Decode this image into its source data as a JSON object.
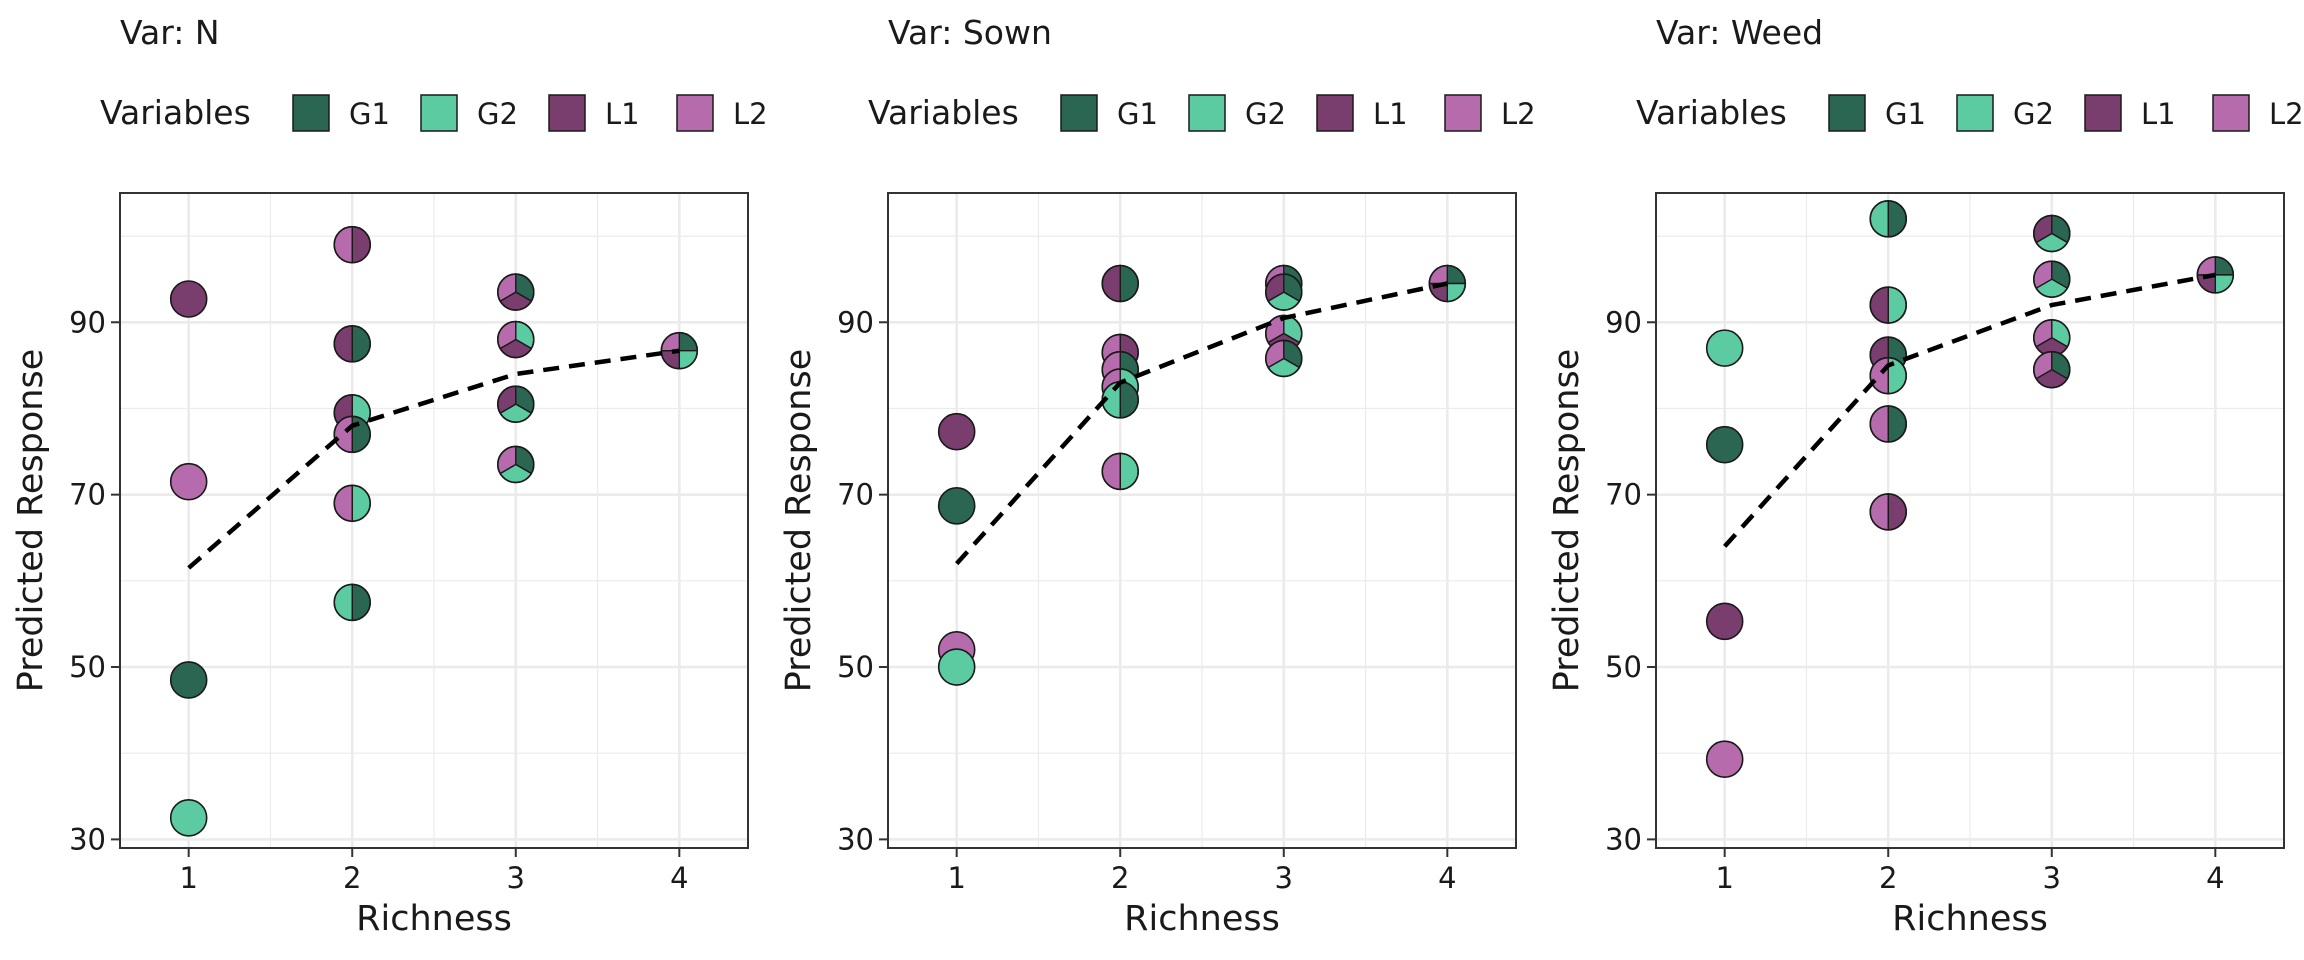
{
  "colors": {
    "G1": "#2A6651",
    "G2": "#5DCBA1",
    "L1": "#793D6E",
    "L2": "#B66BAD",
    "grid": "#EBEBEB",
    "panel_border": "#333333"
  },
  "legend": {
    "title": "Variables",
    "keys": [
      "G1",
      "G2",
      "L1",
      "L2"
    ]
  },
  "chart_data": [
    {
      "type": "scatter",
      "title": "Var: N",
      "xlabel": "Richness",
      "ylabel": "Predicted Response",
      "x_ticks": [
        "1",
        "2",
        "3",
        "4"
      ],
      "y_ticks": [
        "30",
        "50",
        "70",
        "90"
      ],
      "xlim": [
        0.58,
        4.42
      ],
      "ylim": [
        29,
        105
      ],
      "grid": true,
      "legend_position": "top",
      "points": [
        {
          "x": 1,
          "y": 92.7,
          "groups": [
            "L1"
          ]
        },
        {
          "x": 1,
          "y": 71.5,
          "groups": [
            "L2"
          ]
        },
        {
          "x": 1,
          "y": 48.5,
          "groups": [
            "G1"
          ]
        },
        {
          "x": 1,
          "y": 32.5,
          "groups": [
            "G2"
          ]
        },
        {
          "x": 2,
          "y": 99.0,
          "groups": [
            "L1",
            "L2"
          ]
        },
        {
          "x": 2,
          "y": 87.5,
          "groups": [
            "G1",
            "L1"
          ]
        },
        {
          "x": 2,
          "y": 79.5,
          "groups": [
            "G2",
            "L1"
          ]
        },
        {
          "x": 2,
          "y": 77.0,
          "groups": [
            "G1",
            "L2"
          ]
        },
        {
          "x": 2,
          "y": 69.0,
          "groups": [
            "G2",
            "L2"
          ]
        },
        {
          "x": 2,
          "y": 57.5,
          "groups": [
            "G1",
            "G2"
          ]
        },
        {
          "x": 3,
          "y": 93.5,
          "groups": [
            "G1",
            "L1",
            "L2"
          ]
        },
        {
          "x": 3,
          "y": 88.0,
          "groups": [
            "G2",
            "L1",
            "L2"
          ]
        },
        {
          "x": 3,
          "y": 80.5,
          "groups": [
            "G1",
            "G2",
            "L1"
          ]
        },
        {
          "x": 3,
          "y": 73.5,
          "groups": [
            "G1",
            "G2",
            "L2"
          ]
        },
        {
          "x": 4,
          "y": 86.7,
          "groups": [
            "G1",
            "G2",
            "L1",
            "L2"
          ]
        }
      ],
      "trend": {
        "x": [
          1,
          2,
          3,
          4
        ],
        "y": [
          61.5,
          78.0,
          84.0,
          86.7
        ]
      }
    },
    {
      "type": "scatter",
      "title": "Var: Sown",
      "xlabel": "Richness",
      "ylabel": "Predicted Response",
      "x_ticks": [
        "1",
        "2",
        "3",
        "4"
      ],
      "y_ticks": [
        "30",
        "50",
        "70",
        "90"
      ],
      "xlim": [
        0.58,
        4.42
      ],
      "ylim": [
        29,
        105
      ],
      "grid": true,
      "legend_position": "top",
      "points": [
        {
          "x": 1,
          "y": 77.3,
          "groups": [
            "L1"
          ]
        },
        {
          "x": 1,
          "y": 68.7,
          "groups": [
            "G1"
          ]
        },
        {
          "x": 1,
          "y": 52.0,
          "groups": [
            "L2"
          ]
        },
        {
          "x": 1,
          "y": 50.0,
          "groups": [
            "G2"
          ]
        },
        {
          "x": 2,
          "y": 94.5,
          "groups": [
            "G1",
            "L1"
          ]
        },
        {
          "x": 2,
          "y": 86.5,
          "groups": [
            "L1",
            "L2"
          ]
        },
        {
          "x": 2,
          "y": 84.5,
          "groups": [
            "G1",
            "L2"
          ]
        },
        {
          "x": 2,
          "y": 82.5,
          "groups": [
            "G2",
            "L2"
          ]
        },
        {
          "x": 2,
          "y": 81.0,
          "groups": [
            "G1",
            "G2"
          ]
        },
        {
          "x": 2,
          "y": 72.7,
          "groups": [
            "G2",
            "L2"
          ]
        },
        {
          "x": 3,
          "y": 94.5,
          "groups": [
            "G1",
            "L1",
            "L2"
          ]
        },
        {
          "x": 3,
          "y": 93.5,
          "groups": [
            "G1",
            "G2",
            "L1"
          ]
        },
        {
          "x": 3,
          "y": 88.7,
          "groups": [
            "G2",
            "L1",
            "L2"
          ]
        },
        {
          "x": 3,
          "y": 85.8,
          "groups": [
            "G1",
            "G2",
            "L2"
          ]
        },
        {
          "x": 4,
          "y": 94.5,
          "groups": [
            "G1",
            "G2",
            "L1",
            "L2"
          ]
        }
      ],
      "trend": {
        "x": [
          1,
          2,
          3,
          4
        ],
        "y": [
          62.0,
          83.0,
          90.5,
          94.5
        ]
      }
    },
    {
      "type": "scatter",
      "title": "Var: Weed",
      "xlabel": "Richness",
      "ylabel": "Predicted Response",
      "x_ticks": [
        "1",
        "2",
        "3",
        "4"
      ],
      "y_ticks": [
        "30",
        "50",
        "70",
        "90"
      ],
      "xlim": [
        0.58,
        4.42
      ],
      "ylim": [
        29,
        105
      ],
      "grid": true,
      "legend_position": "top",
      "points": [
        {
          "x": 1,
          "y": 87.0,
          "groups": [
            "G2"
          ]
        },
        {
          "x": 1,
          "y": 75.8,
          "groups": [
            "G1"
          ]
        },
        {
          "x": 1,
          "y": 55.3,
          "groups": [
            "L1"
          ]
        },
        {
          "x": 1,
          "y": 39.3,
          "groups": [
            "L2"
          ]
        },
        {
          "x": 2,
          "y": 102.0,
          "groups": [
            "G1",
            "G2"
          ]
        },
        {
          "x": 2,
          "y": 92.0,
          "groups": [
            "G2",
            "L1"
          ]
        },
        {
          "x": 2,
          "y": 86.2,
          "groups": [
            "G1",
            "L1"
          ]
        },
        {
          "x": 2,
          "y": 83.8,
          "groups": [
            "G2",
            "L2"
          ]
        },
        {
          "x": 2,
          "y": 78.2,
          "groups": [
            "G1",
            "L2"
          ]
        },
        {
          "x": 2,
          "y": 68.0,
          "groups": [
            "L1",
            "L2"
          ]
        },
        {
          "x": 3,
          "y": 100.3,
          "groups": [
            "G1",
            "G2",
            "L1"
          ]
        },
        {
          "x": 3,
          "y": 95.0,
          "groups": [
            "G1",
            "G2",
            "L2"
          ]
        },
        {
          "x": 3,
          "y": 88.2,
          "groups": [
            "G2",
            "L1",
            "L2"
          ]
        },
        {
          "x": 3,
          "y": 84.5,
          "groups": [
            "G1",
            "L1",
            "L2"
          ]
        },
        {
          "x": 4,
          "y": 95.5,
          "groups": [
            "G1",
            "G2",
            "L1",
            "L2"
          ]
        }
      ],
      "trend": {
        "x": [
          1,
          2,
          3,
          4
        ],
        "y": [
          64.0,
          85.0,
          92.0,
          95.5
        ]
      }
    }
  ]
}
